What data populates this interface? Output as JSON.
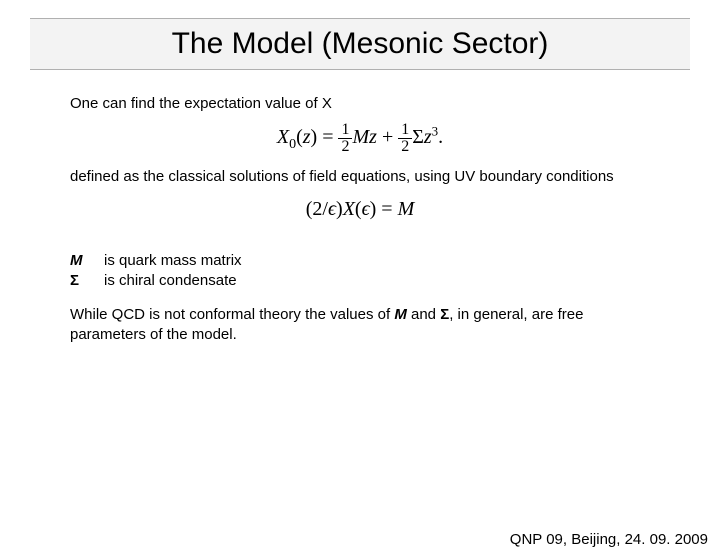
{
  "title": "The Model (Mesonic Sector)",
  "para1": "One can find the expectation value of X",
  "formula1_html": "<i>X</i><sub>0</sub>(<i>z</i>) = <span class='frac'><span class='num'>1</span><span class='den'>2</span></span><i>Mz</i> + <span class='frac'><span class='num'>1</span><span class='den'>2</span></span>Σ<i>z</i><sup>3</sup>.",
  "para2": "defined as the classical solutions of field equations, using UV boundary conditions",
  "formula2_html": "(2/<i>ϵ</i>)<i>X</i>(<i>ϵ</i>) = <i>M</i>",
  "def_M_sym": "M",
  "def_M_txt": "is quark mass matrix",
  "def_S_sym": "Σ",
  "def_S_txt": "is chiral condensate",
  "para3_pre": "While QCD is not conformal theory the values of ",
  "para3_M": "M",
  "para3_mid": " and ",
  "para3_S": "Σ",
  "para3_post": ", in general, are free parameters of the model.",
  "footer": "QNP 09, Beijing, 24. 09. 2009"
}
